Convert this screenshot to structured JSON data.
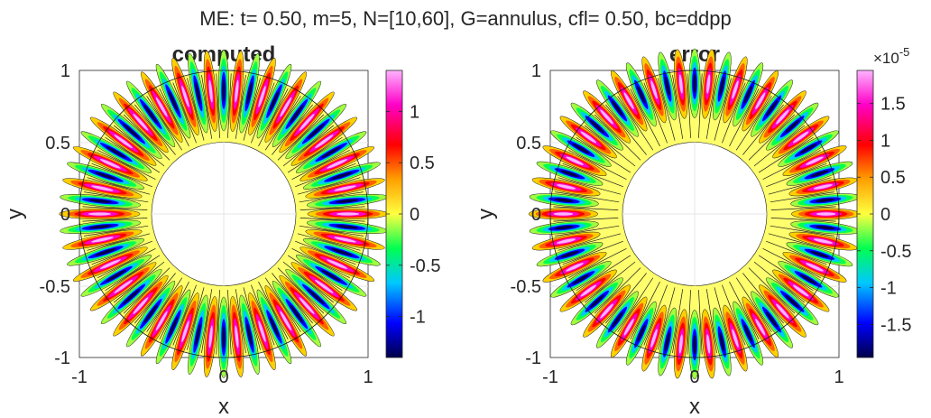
{
  "suptitle": "ME: t= 0.50, m=5, N=[10,60], G=annulus, cfl= 0.50, bc=ddpp",
  "chart_data": [
    {
      "type": "heatmap",
      "title": "computed",
      "xlabel": "x",
      "ylabel": "y",
      "xlim": [
        -1,
        1
      ],
      "ylim": [
        -1,
        1
      ],
      "xticks": [
        "-1",
        "0",
        "1"
      ],
      "yticks": [
        "1",
        "0.5",
        "0",
        "-0.5",
        "-1"
      ],
      "grid": true,
      "colormap": "jet-like with magenta top",
      "domain": {
        "shape": "annulus",
        "inner_radius": 0.5,
        "outer_radius": 1.0
      },
      "lobes": {
        "count": 60,
        "radial_center": 0.86,
        "amplitude": 1.38
      },
      "colorbar": {
        "min": -1.4,
        "max": 1.4,
        "ticks": [
          "1",
          "0.5",
          "0",
          "-0.5",
          "-1"
        ],
        "tick_values": [
          1,
          0.5,
          0,
          -0.5,
          -1
        ],
        "exponent": ""
      },
      "contour_lines": true
    },
    {
      "type": "heatmap",
      "title": "error",
      "xlabel": "x",
      "ylabel": "y",
      "xlim": [
        -1,
        1
      ],
      "ylim": [
        -1,
        1
      ],
      "xticks": [
        "-1",
        "0",
        "1"
      ],
      "yticks": [
        "1",
        "0.5",
        "0",
        "-0.5",
        "-1"
      ],
      "grid": true,
      "colormap": "jet-like with magenta top",
      "domain": {
        "shape": "annulus",
        "inner_radius": 0.5,
        "outer_radius": 1.0
      },
      "lobes": {
        "count": 60,
        "radial_center": 0.91,
        "amplitude": 1.9
      },
      "colorbar": {
        "min": -1.95,
        "max": 1.95,
        "ticks": [
          "1.5",
          "1",
          "0.5",
          "0",
          "-0.5",
          "-1",
          "-1.5"
        ],
        "tick_values": [
          1.5,
          1,
          0.5,
          0,
          -0.5,
          -1,
          -1.5
        ],
        "exponent": "×10-5",
        "exponent_base": "×10",
        "exponent_power": "-5"
      },
      "contour_lines": true
    }
  ]
}
